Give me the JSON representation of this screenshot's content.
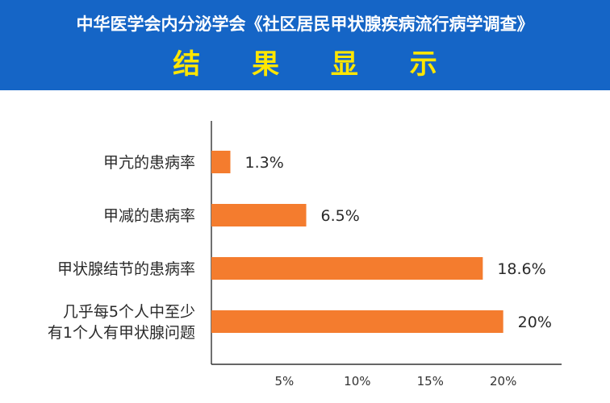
{
  "header": {
    "title": "中华医学会内分泌学会《社区居民甲状腺疾病流行病学调查》",
    "subtitle": "结 果 显 示",
    "background_color": "#1565c6",
    "subtitle_color": "#ffe600"
  },
  "chart_data": {
    "type": "bar",
    "orientation": "horizontal",
    "categories": [
      [
        "甲亢的患病率"
      ],
      [
        "甲减的患病率"
      ],
      [
        "甲状腺结节的患病率"
      ],
      [
        "几乎每5个人中至少",
        "有1个人有甲状腺问题"
      ]
    ],
    "values": [
      1.3,
      6.5,
      18.6,
      20
    ],
    "value_labels": [
      "1.3%",
      "6.5%",
      "18.6%",
      "20%"
    ],
    "xticks": [
      5,
      10,
      15,
      20
    ],
    "xtick_labels": [
      "5%",
      "10%",
      "15%",
      "20%"
    ],
    "xlim": [
      0,
      24
    ],
    "bar_color": "#f47c2e",
    "grid": false,
    "legend": "none"
  }
}
